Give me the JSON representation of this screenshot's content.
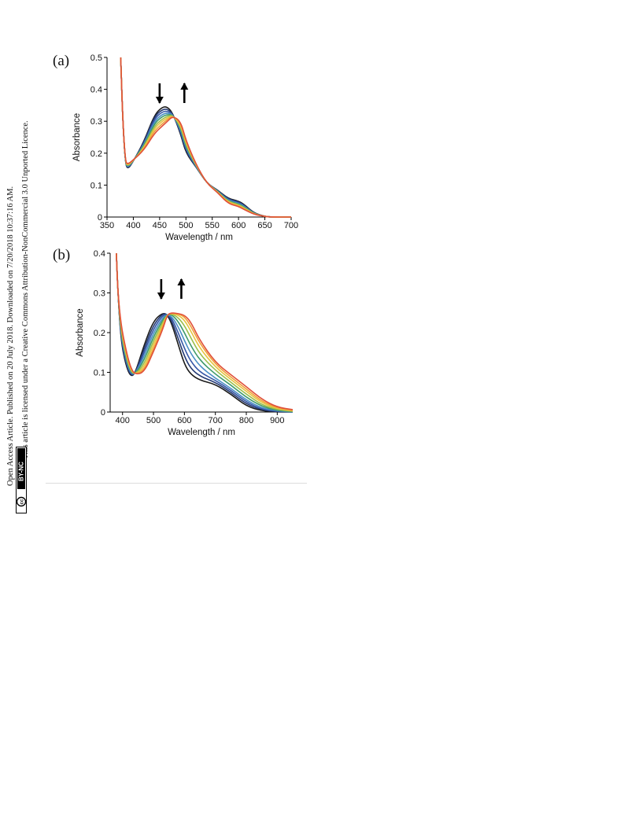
{
  "sidebar": {
    "line1": "Open Access Article. Published on 20 July 2018. Downloaded on 7/20/2018 10:37:16 AM.",
    "line2": "This article is licensed under a Creative Commons Attribution-NonCommercial 3.0 Unported Licence.",
    "badge_cc": "cc",
    "badge_text": "BY-NC"
  },
  "colors": {
    "series": [
      "#1a1a1a",
      "#243a73",
      "#3758a8",
      "#4b8fc6",
      "#3f9a6a",
      "#9bbf4a",
      "#e8c440",
      "#f0a03a",
      "#e0503a"
    ],
    "arrow": "#000000"
  },
  "chart_data": [
    {
      "panel": "(a)",
      "type": "line",
      "xlabel": "Wavelength / nm",
      "ylabel": "Absorbance",
      "xlim": [
        350,
        700
      ],
      "ylim": [
        0,
        0.5
      ],
      "xticks": [
        "350",
        "400",
        "450",
        "500",
        "550",
        "600",
        "650",
        "700"
      ],
      "yticks": [
        "0",
        "0.1",
        "0.2",
        "0.3",
        "0.4",
        "0.5"
      ],
      "arrows": [
        {
          "x": 450,
          "direction": "down"
        },
        {
          "x": 497,
          "direction": "up"
        }
      ],
      "series": [
        {
          "x": [
            376,
            380,
            385,
            390,
            400,
            420,
            440,
            455,
            465,
            475,
            490,
            500,
            520,
            540,
            560,
            580,
            600,
            610,
            630,
            650,
            660,
            700
          ],
          "values": [
            0.5,
            0.3,
            0.165,
            0.15,
            0.175,
            0.235,
            0.32,
            0.345,
            0.345,
            0.325,
            0.26,
            0.2,
            0.155,
            0.105,
            0.085,
            0.058,
            0.05,
            0.04,
            0.012,
            0.002,
            0,
            0
          ]
        },
        {
          "x": [
            376,
            380,
            385,
            390,
            400,
            420,
            440,
            455,
            465,
            475,
            490,
            500,
            520,
            540,
            560,
            580,
            600,
            610,
            630,
            650,
            660,
            700
          ],
          "values": [
            0.5,
            0.3,
            0.165,
            0.152,
            0.175,
            0.232,
            0.315,
            0.337,
            0.338,
            0.323,
            0.265,
            0.205,
            0.155,
            0.105,
            0.084,
            0.056,
            0.048,
            0.038,
            0.011,
            0.002,
            0,
            0
          ]
        },
        {
          "x": [
            376,
            380,
            385,
            390,
            400,
            420,
            440,
            455,
            465,
            475,
            490,
            500,
            520,
            540,
            560,
            580,
            600,
            610,
            630,
            650,
            660,
            700
          ],
          "values": [
            0.5,
            0.3,
            0.166,
            0.154,
            0.176,
            0.228,
            0.308,
            0.33,
            0.332,
            0.322,
            0.27,
            0.21,
            0.156,
            0.105,
            0.083,
            0.054,
            0.046,
            0.036,
            0.011,
            0.002,
            0,
            0
          ]
        },
        {
          "x": [
            376,
            380,
            385,
            390,
            400,
            420,
            440,
            455,
            465,
            475,
            490,
            500,
            520,
            540,
            560,
            580,
            600,
            610,
            630,
            650,
            660,
            700
          ],
          "values": [
            0.5,
            0.3,
            0.167,
            0.156,
            0.176,
            0.225,
            0.3,
            0.322,
            0.326,
            0.321,
            0.275,
            0.215,
            0.157,
            0.105,
            0.082,
            0.052,
            0.043,
            0.034,
            0.01,
            0.002,
            0,
            0
          ]
        },
        {
          "x": [
            376,
            380,
            385,
            390,
            400,
            420,
            440,
            455,
            465,
            475,
            490,
            500,
            520,
            540,
            560,
            580,
            600,
            610,
            630,
            650,
            660,
            700
          ],
          "values": [
            0.5,
            0.3,
            0.168,
            0.158,
            0.177,
            0.222,
            0.293,
            0.315,
            0.321,
            0.32,
            0.28,
            0.22,
            0.158,
            0.105,
            0.081,
            0.05,
            0.041,
            0.032,
            0.01,
            0.002,
            0,
            0
          ]
        },
        {
          "x": [
            376,
            380,
            385,
            390,
            400,
            420,
            440,
            455,
            465,
            475,
            490,
            500,
            520,
            540,
            560,
            580,
            600,
            610,
            630,
            650,
            660,
            700
          ],
          "values": [
            0.5,
            0.3,
            0.169,
            0.16,
            0.177,
            0.218,
            0.285,
            0.307,
            0.316,
            0.319,
            0.285,
            0.225,
            0.159,
            0.105,
            0.08,
            0.048,
            0.039,
            0.03,
            0.009,
            0.002,
            0,
            0
          ]
        },
        {
          "x": [
            376,
            380,
            385,
            390,
            400,
            420,
            440,
            455,
            465,
            475,
            490,
            500,
            520,
            540,
            560,
            580,
            600,
            610,
            630,
            650,
            660,
            700
          ],
          "values": [
            0.5,
            0.3,
            0.17,
            0.162,
            0.178,
            0.215,
            0.278,
            0.3,
            0.311,
            0.318,
            0.29,
            0.23,
            0.16,
            0.105,
            0.079,
            0.046,
            0.037,
            0.028,
            0.009,
            0.002,
            0,
            0
          ]
        },
        {
          "x": [
            376,
            380,
            385,
            390,
            400,
            420,
            440,
            455,
            465,
            475,
            490,
            500,
            520,
            540,
            560,
            580,
            600,
            610,
            630,
            650,
            660,
            700
          ],
          "values": [
            0.5,
            0.3,
            0.171,
            0.164,
            0.178,
            0.212,
            0.27,
            0.292,
            0.306,
            0.317,
            0.295,
            0.235,
            0.161,
            0.105,
            0.078,
            0.044,
            0.035,
            0.026,
            0.008,
            0.002,
            0,
            0
          ]
        },
        {
          "x": [
            376,
            380,
            385,
            390,
            400,
            420,
            440,
            455,
            465,
            475,
            490,
            500,
            520,
            540,
            560,
            580,
            600,
            610,
            630,
            650,
            660,
            700
          ],
          "values": [
            0.5,
            0.3,
            0.172,
            0.166,
            0.179,
            0.209,
            0.262,
            0.285,
            0.3,
            0.316,
            0.3,
            0.24,
            0.162,
            0.105,
            0.077,
            0.042,
            0.033,
            0.024,
            0.008,
            0.002,
            0,
            0
          ]
        }
      ]
    },
    {
      "panel": "(b)",
      "type": "line",
      "xlabel": "Wavelength / nm",
      "ylabel": "Absorbance",
      "xlim": [
        360,
        950
      ],
      "ylim": [
        0,
        0.4
      ],
      "xticks": [
        "400",
        "500",
        "600",
        "700",
        "800",
        "900"
      ],
      "yticks": [
        "0",
        "0.1",
        "0.2",
        "0.3",
        "0.4"
      ],
      "arrows": [
        {
          "x": 525,
          "direction": "down"
        },
        {
          "x": 590,
          "direction": "up"
        }
      ],
      "series": [
        {
          "x": [
            380,
            385,
            395,
            410,
            425,
            440,
            470,
            500,
            530,
            545,
            560,
            580,
            600,
            620,
            650,
            700,
            750,
            800,
            850,
            900,
            950
          ],
          "values": [
            0.4,
            0.3,
            0.18,
            0.12,
            0.09,
            0.095,
            0.17,
            0.23,
            0.25,
            0.245,
            0.22,
            0.17,
            0.12,
            0.095,
            0.08,
            0.07,
            0.045,
            0.015,
            0.003,
            0,
            0
          ]
        },
        {
          "x": [
            380,
            385,
            395,
            410,
            425,
            440,
            470,
            500,
            530,
            545,
            560,
            580,
            600,
            620,
            650,
            700,
            750,
            800,
            850,
            900,
            950
          ],
          "values": [
            0.4,
            0.3,
            0.185,
            0.125,
            0.093,
            0.094,
            0.16,
            0.22,
            0.248,
            0.246,
            0.228,
            0.185,
            0.14,
            0.11,
            0.09,
            0.075,
            0.05,
            0.02,
            0.005,
            0.001,
            0
          ]
        },
        {
          "x": [
            380,
            385,
            395,
            410,
            425,
            440,
            470,
            500,
            530,
            545,
            560,
            580,
            600,
            620,
            650,
            700,
            750,
            800,
            850,
            900,
            950
          ],
          "values": [
            0.4,
            0.3,
            0.19,
            0.13,
            0.096,
            0.094,
            0.15,
            0.21,
            0.244,
            0.246,
            0.235,
            0.2,
            0.16,
            0.128,
            0.1,
            0.08,
            0.055,
            0.025,
            0.007,
            0.002,
            0
          ]
        },
        {
          "x": [
            380,
            385,
            395,
            410,
            425,
            440,
            470,
            500,
            530,
            545,
            560,
            580,
            600,
            620,
            650,
            700,
            750,
            800,
            850,
            900,
            950
          ],
          "values": [
            0.4,
            0.3,
            0.195,
            0.135,
            0.099,
            0.094,
            0.14,
            0.2,
            0.238,
            0.246,
            0.24,
            0.215,
            0.18,
            0.148,
            0.115,
            0.085,
            0.06,
            0.03,
            0.01,
            0.003,
            0
          ]
        },
        {
          "x": [
            380,
            385,
            395,
            410,
            425,
            440,
            470,
            500,
            530,
            545,
            560,
            580,
            600,
            620,
            650,
            700,
            750,
            800,
            850,
            900,
            950
          ],
          "values": [
            0.4,
            0.3,
            0.2,
            0.14,
            0.102,
            0.094,
            0.13,
            0.19,
            0.232,
            0.246,
            0.245,
            0.228,
            0.2,
            0.168,
            0.13,
            0.095,
            0.068,
            0.037,
            0.014,
            0.004,
            0.001
          ]
        },
        {
          "x": [
            380,
            385,
            395,
            410,
            425,
            440,
            470,
            500,
            530,
            545,
            560,
            580,
            600,
            620,
            650,
            700,
            750,
            800,
            850,
            900,
            950
          ],
          "values": [
            0.4,
            0.3,
            0.205,
            0.145,
            0.105,
            0.094,
            0.12,
            0.18,
            0.226,
            0.246,
            0.247,
            0.238,
            0.218,
            0.188,
            0.145,
            0.105,
            0.075,
            0.045,
            0.018,
            0.006,
            0.002
          ]
        },
        {
          "x": [
            380,
            385,
            395,
            410,
            425,
            440,
            470,
            500,
            530,
            545,
            560,
            580,
            600,
            620,
            650,
            700,
            750,
            800,
            850,
            900,
            950
          ],
          "values": [
            0.4,
            0.3,
            0.21,
            0.15,
            0.108,
            0.094,
            0.112,
            0.17,
            0.22,
            0.246,
            0.248,
            0.244,
            0.232,
            0.205,
            0.16,
            0.113,
            0.082,
            0.052,
            0.023,
            0.008,
            0.003
          ]
        },
        {
          "x": [
            380,
            385,
            395,
            410,
            425,
            440,
            470,
            500,
            530,
            545,
            560,
            580,
            600,
            620,
            650,
            700,
            750,
            800,
            850,
            900,
            950
          ],
          "values": [
            0.4,
            0.3,
            0.215,
            0.155,
            0.111,
            0.094,
            0.105,
            0.16,
            0.214,
            0.246,
            0.249,
            0.247,
            0.24,
            0.218,
            0.172,
            0.12,
            0.088,
            0.058,
            0.027,
            0.01,
            0.004
          ]
        },
        {
          "x": [
            380,
            385,
            395,
            410,
            425,
            440,
            470,
            500,
            530,
            545,
            560,
            580,
            600,
            620,
            650,
            700,
            750,
            800,
            850,
            900,
            950
          ],
          "values": [
            0.4,
            0.3,
            0.22,
            0.16,
            0.114,
            0.094,
            0.1,
            0.152,
            0.208,
            0.246,
            0.25,
            0.248,
            0.244,
            0.228,
            0.18,
            0.125,
            0.094,
            0.064,
            0.032,
            0.012,
            0.006
          ]
        }
      ]
    }
  ]
}
